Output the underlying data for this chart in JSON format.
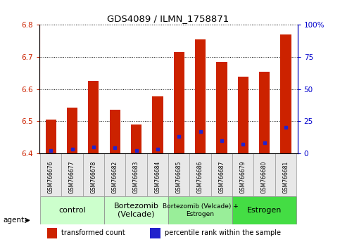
{
  "title": "GDS4089 / ILMN_1758871",
  "samples": [
    "GSM766676",
    "GSM766677",
    "GSM766678",
    "GSM766682",
    "GSM766683",
    "GSM766684",
    "GSM766685",
    "GSM766686",
    "GSM766687",
    "GSM766679",
    "GSM766680",
    "GSM766681"
  ],
  "transformed_count": [
    6.505,
    6.542,
    6.625,
    6.535,
    6.49,
    6.578,
    6.715,
    6.755,
    6.685,
    6.638,
    6.655,
    6.77
  ],
  "percentile_rank": [
    2,
    3,
    5,
    4,
    2,
    3,
    13,
    17,
    10,
    7,
    8,
    20
  ],
  "ylim_left": [
    6.4,
    6.8
  ],
  "ylim_right": [
    0,
    100
  ],
  "yticks_left": [
    6.4,
    6.5,
    6.6,
    6.7,
    6.8
  ],
  "yticks_right": [
    0,
    25,
    50,
    75,
    100
  ],
  "ytick_labels_right": [
    "0",
    "25",
    "50",
    "75",
    "100%"
  ],
  "bar_color": "#cc2200",
  "dot_color": "#2222cc",
  "bg_color": "#ffffff",
  "agent_groups": [
    {
      "label": "control",
      "start": 0,
      "end": 3,
      "color": "#ccffcc",
      "fontsize": 8
    },
    {
      "label": "Bortezomib\n(Velcade)",
      "start": 3,
      "end": 6,
      "color": "#ccffcc",
      "fontsize": 8
    },
    {
      "label": "Bortezomib (Velcade) +\nEstrogen",
      "start": 6,
      "end": 9,
      "color": "#99ee99",
      "fontsize": 6.5
    },
    {
      "label": "Estrogen",
      "start": 9,
      "end": 12,
      "color": "#44dd44",
      "fontsize": 8
    }
  ],
  "legend_items": [
    {
      "color": "#cc2200",
      "label": "transformed count"
    },
    {
      "color": "#2222cc",
      "label": "percentile rank within the sample"
    }
  ],
  "bar_width": 0.5,
  "base_value": 6.4
}
